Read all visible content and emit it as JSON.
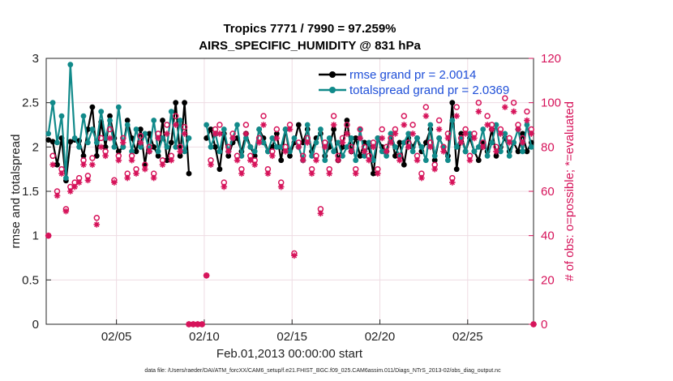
{
  "chart_data": {
    "type": "line",
    "title": "Tropics 7771 / 7990 = 97.259%",
    "subtitle": "AIRS_SPECIFIC_HUMIDITY @ 831 hPa",
    "xlabel": "Feb.01,2013 00:00:00 start",
    "ylabel": "rmse and totalspread",
    "y2label": "# of obs: o=possible; *=evaluated",
    "footnote": "data file: /Users/raeder/DAI/ATM_forcXX/CAM6_setup/f.e21.FHIST_BGC.f09_025.CAM6assim.011/Diags_NTrS_2013-02/obs_diag_output.nc",
    "xlim": [
      1,
      28.75
    ],
    "ylim": [
      0,
      3
    ],
    "y2lim": [
      0,
      120
    ],
    "x_tick_labels": [
      "02/05",
      "02/10",
      "02/15",
      "02/20",
      "02/25"
    ],
    "x_tick_values": [
      5,
      10,
      15,
      20,
      25
    ],
    "y_tick_labels": [
      "0",
      "0.5",
      "1",
      "1.5",
      "2",
      "2.5",
      "3"
    ],
    "y2_tick_labels": [
      "0",
      "20",
      "40",
      "60",
      "80",
      "100",
      "120"
    ],
    "grid": true,
    "legend_position": "top-right",
    "colors": {
      "rmse": "#000000",
      "spread": "#118a8a",
      "obs": "#d6135a"
    },
    "series": [
      {
        "name": "rmse grand pr = 2.0014",
        "x": [
          1.125,
          1.375,
          1.625,
          1.875,
          2.125,
          2.375,
          2.625,
          2.875,
          3.125,
          3.375,
          3.625,
          3.875,
          4.125,
          4.375,
          4.625,
          4.875,
          5.125,
          5.375,
          5.625,
          5.875,
          6.125,
          6.375,
          6.625,
          6.875,
          7.125,
          7.375,
          7.625,
          7.875,
          8.125,
          8.375,
          8.625,
          8.875,
          9.125,
          10.125,
          10.375,
          10.625,
          10.875,
          11.125,
          11.375,
          11.625,
          11.875,
          12.125,
          12.375,
          12.625,
          12.875,
          13.125,
          13.375,
          13.625,
          13.875,
          14.125,
          14.375,
          14.625,
          14.875,
          15.125,
          15.375,
          15.625,
          15.875,
          16.125,
          16.375,
          16.625,
          16.875,
          17.125,
          17.375,
          17.625,
          17.875,
          18.125,
          18.375,
          18.625,
          18.875,
          19.125,
          19.375,
          19.625,
          19.875,
          20.125,
          20.375,
          20.625,
          20.875,
          21.125,
          21.375,
          21.625,
          21.875,
          22.125,
          22.375,
          22.625,
          22.875,
          23.125,
          23.375,
          23.625,
          23.875,
          24.125,
          24.375,
          24.625,
          24.875,
          25.125,
          25.375,
          25.625,
          25.875,
          26.125,
          26.375,
          26.625,
          26.875,
          27.125,
          27.375,
          27.625,
          27.875,
          28.125,
          28.375,
          28.625
        ],
        "values": [
          2.08,
          2.06,
          1.8,
          2.1,
          1.62,
          2.06,
          2.08,
          2.07,
          1.9,
          2.2,
          2.45,
          1.9,
          2.28,
          2.0,
          2.35,
          2.1,
          1.95,
          2.0,
          2.3,
          2.1,
          1.95,
          2.2,
          1.8,
          2.15,
          2.0,
          1.9,
          2.3,
          1.85,
          2.05,
          2.5,
          1.9,
          2.5,
          1.7,
          2.1,
          2.2,
          2.0,
          1.75,
          2.15,
          1.9,
          2.05,
          2.1,
          1.95,
          2.15,
          2.0,
          1.9,
          2.2,
          2.1,
          1.95,
          2.0,
          2.15,
          1.85,
          2.2,
          1.9,
          2.05,
          2.25,
          2.05,
          2.2,
          1.95,
          2.1,
          2.15,
          1.9,
          2.0,
          2.2,
          1.85,
          2.0,
          2.3,
          1.95,
          2.1,
          1.9,
          2.05,
          2.0,
          1.7,
          2.1,
          2.0,
          1.95,
          2.15,
          1.9,
          2.05,
          1.8,
          2.1,
          2.0,
          2.1,
          1.95,
          2.05,
          2.2,
          1.85,
          2.1,
          2.0,
          1.9,
          2.5,
          1.75,
          2.15,
          1.95,
          2.1,
          1.95,
          1.85,
          2.05,
          1.95,
          2.2,
          1.9,
          2.0,
          2.1,
          1.95,
          2.05,
          1.95,
          2.15,
          1.95,
          2.05
        ]
      },
      {
        "name": "totalspread grand pr = 2.0369",
        "x": [
          1.125,
          1.375,
          1.625,
          1.875,
          2.125,
          2.375,
          2.625,
          2.875,
          3.125,
          3.375,
          3.625,
          3.875,
          4.125,
          4.375,
          4.625,
          4.875,
          5.125,
          5.375,
          5.625,
          5.875,
          6.125,
          6.375,
          6.625,
          6.875,
          7.125,
          7.375,
          7.625,
          7.875,
          8.125,
          8.375,
          8.625,
          8.875,
          9.125,
          10.125,
          10.375,
          10.625,
          10.875,
          11.125,
          11.375,
          11.625,
          11.875,
          12.125,
          12.375,
          12.625,
          12.875,
          13.125,
          13.375,
          13.625,
          13.875,
          14.125,
          14.375,
          14.625,
          14.875,
          15.125,
          15.375,
          15.625,
          15.875,
          16.125,
          16.375,
          16.625,
          16.875,
          17.125,
          17.375,
          17.625,
          17.875,
          18.125,
          18.375,
          18.625,
          18.875,
          19.125,
          19.375,
          19.625,
          19.875,
          20.125,
          20.375,
          20.625,
          20.875,
          21.125,
          21.375,
          21.625,
          21.875,
          22.125,
          22.375,
          22.625,
          22.875,
          23.125,
          23.375,
          23.625,
          23.875,
          24.125,
          24.375,
          24.625,
          24.875,
          25.125,
          25.375,
          25.625,
          25.875,
          26.125,
          26.375,
          26.625,
          26.875,
          27.125,
          27.375,
          27.625,
          27.875,
          28.125,
          28.375,
          28.625
        ],
        "values": [
          2.15,
          2.5,
          2.05,
          2.35,
          1.65,
          2.93,
          2.1,
          2.0,
          2.35,
          2.05,
          2.2,
          2.05,
          2.4,
          2.1,
          2.3,
          2.0,
          2.45,
          2.0,
          2.25,
          1.95,
          2.2,
          2.0,
          2.15,
          1.95,
          2.3,
          1.95,
          2.1,
          2.0,
          2.4,
          2.0,
          2.3,
          1.95,
          2.1,
          2.25,
          2.0,
          2.15,
          1.95,
          2.2,
          1.95,
          2.1,
          2.25,
          1.9,
          2.1,
          2.0,
          1.95,
          2.2,
          2.05,
          1.95,
          2.1,
          2.0,
          2.0,
          2.2,
          1.95,
          2.1,
          2.0,
          1.85,
          2.25,
          1.9,
          2.05,
          2.2,
          1.85,
          2.1,
          1.95,
          2.05,
          1.9,
          2.0,
          2.1,
          1.85,
          2.2,
          1.9,
          2.05,
          1.85,
          2.1,
          1.95,
          1.9,
          2.15,
          2.0,
          1.9,
          2.05,
          2.15,
          1.95,
          2.1,
          2.0,
          1.85,
          2.25,
          1.9,
          2.1,
          2.0,
          1.85,
          2.3,
          2.0,
          2.1,
          1.95,
          2.15,
          1.95,
          2.0,
          2.2,
          1.9,
          2.05,
          2.25,
          1.95,
          2.15,
          1.9,
          2.05,
          2.2,
          1.95,
          2.25,
          2.0
        ]
      },
      {
        "name": "obs possible",
        "marker": "o",
        "x": [
          1.125,
          1.375,
          1.625,
          1.875,
          2.125,
          2.375,
          2.625,
          2.875,
          3.125,
          3.375,
          3.625,
          3.875,
          4.125,
          4.375,
          4.625,
          4.875,
          5.125,
          5.375,
          5.625,
          5.875,
          6.125,
          6.375,
          6.625,
          6.875,
          7.125,
          7.375,
          7.625,
          7.875,
          8.125,
          8.375,
          8.625,
          8.875,
          9.125,
          9.375,
          9.625,
          9.875,
          10.125,
          10.375,
          10.625,
          10.875,
          11.125,
          11.375,
          11.625,
          11.875,
          12.125,
          12.375,
          12.625,
          12.875,
          13.125,
          13.375,
          13.625,
          13.875,
          14.125,
          14.375,
          14.625,
          14.875,
          15.125,
          15.375,
          15.625,
          15.875,
          16.125,
          16.375,
          16.625,
          16.875,
          17.125,
          17.375,
          17.625,
          17.875,
          18.125,
          18.375,
          18.625,
          18.875,
          19.125,
          19.375,
          19.625,
          19.875,
          20.125,
          20.375,
          20.625,
          20.875,
          21.125,
          21.375,
          21.625,
          21.875,
          22.125,
          22.375,
          22.625,
          22.875,
          23.125,
          23.375,
          23.625,
          23.875,
          24.125,
          24.375,
          24.625,
          24.875,
          25.125,
          25.375,
          25.625,
          25.875,
          26.125,
          26.375,
          26.625,
          26.875,
          27.125,
          27.375,
          27.625,
          27.875,
          28.125,
          28.375,
          28.625,
          28.75
        ],
        "values": [
          40,
          76,
          60,
          70,
          52,
          62,
          64,
          66,
          74,
          67,
          75,
          48,
          84,
          78,
          88,
          65,
          76,
          84,
          68,
          76,
          70,
          85,
          72,
          80,
          68,
          86,
          74,
          90,
          76,
          94,
          80,
          89,
          0,
          0,
          0,
          0,
          22,
          74,
          88,
          90,
          64,
          80,
          86,
          76,
          70,
          90,
          76,
          74,
          84,
          94,
          70,
          78,
          88,
          64,
          80,
          90,
          32,
          82,
          76,
          84,
          70,
          76,
          52,
          82,
          70,
          94,
          76,
          84,
          90,
          80,
          70,
          88,
          80,
          76,
          82,
          70,
          88,
          80,
          84,
          88,
          76,
          94,
          82,
          90,
          76,
          68,
          98,
          82,
          72,
          92,
          80,
          86,
          66,
          98,
          84,
          88,
          76,
          86,
          100,
          82,
          94,
          90,
          80,
          88,
          102,
          84,
          100,
          90,
          84,
          96,
          88,
          0
        ]
      },
      {
        "name": "obs evaluated",
        "marker": "*",
        "x": [
          1.125,
          1.375,
          1.625,
          1.875,
          2.125,
          2.375,
          2.625,
          2.875,
          3.125,
          3.375,
          3.625,
          3.875,
          4.125,
          4.375,
          4.625,
          4.875,
          5.125,
          5.375,
          5.625,
          5.875,
          6.125,
          6.375,
          6.625,
          6.875,
          7.125,
          7.375,
          7.625,
          7.875,
          8.125,
          8.375,
          8.625,
          8.875,
          9.125,
          9.375,
          9.625,
          9.875,
          10.125,
          10.375,
          10.625,
          10.875,
          11.125,
          11.375,
          11.625,
          11.875,
          12.125,
          12.375,
          12.625,
          12.875,
          13.125,
          13.375,
          13.625,
          13.875,
          14.125,
          14.375,
          14.625,
          14.875,
          15.125,
          15.375,
          15.625,
          15.875,
          16.125,
          16.375,
          16.625,
          16.875,
          17.125,
          17.375,
          17.625,
          17.875,
          18.125,
          18.375,
          18.625,
          18.875,
          19.125,
          19.375,
          19.625,
          19.875,
          20.125,
          20.375,
          20.625,
          20.875,
          21.125,
          21.375,
          21.625,
          21.875,
          22.125,
          22.375,
          22.625,
          22.875,
          23.125,
          23.375,
          23.625,
          23.875,
          24.125,
          24.375,
          24.625,
          24.875,
          25.125,
          25.375,
          25.625,
          25.875,
          26.125,
          26.375,
          26.625,
          26.875,
          27.125,
          27.375,
          27.625,
          27.875,
          28.125,
          28.375,
          28.625,
          28.75
        ],
        "values": [
          40,
          72,
          58,
          68,
          51,
          60,
          62,
          64,
          72,
          65,
          72,
          45,
          80,
          76,
          84,
          64,
          74,
          82,
          66,
          74,
          68,
          82,
          70,
          78,
          66,
          84,
          72,
          86,
          74,
          90,
          78,
          86,
          0,
          0,
          0,
          0,
          22,
          72,
          86,
          86,
          62,
          78,
          84,
          74,
          68,
          86,
          74,
          72,
          82,
          90,
          68,
          76,
          84,
          62,
          78,
          88,
          31,
          80,
          74,
          82,
          68,
          74,
          50,
          80,
          68,
          90,
          74,
          82,
          86,
          78,
          68,
          84,
          78,
          74,
          80,
          68,
          84,
          78,
          82,
          86,
          74,
          90,
          80,
          86,
          74,
          66,
          94,
          80,
          70,
          88,
          78,
          84,
          64,
          94,
          82,
          86,
          74,
          84,
          96,
          80,
          90,
          88,
          78,
          86,
          98,
          82,
          96,
          88,
          82,
          92,
          86,
          0
        ]
      }
    ]
  }
}
